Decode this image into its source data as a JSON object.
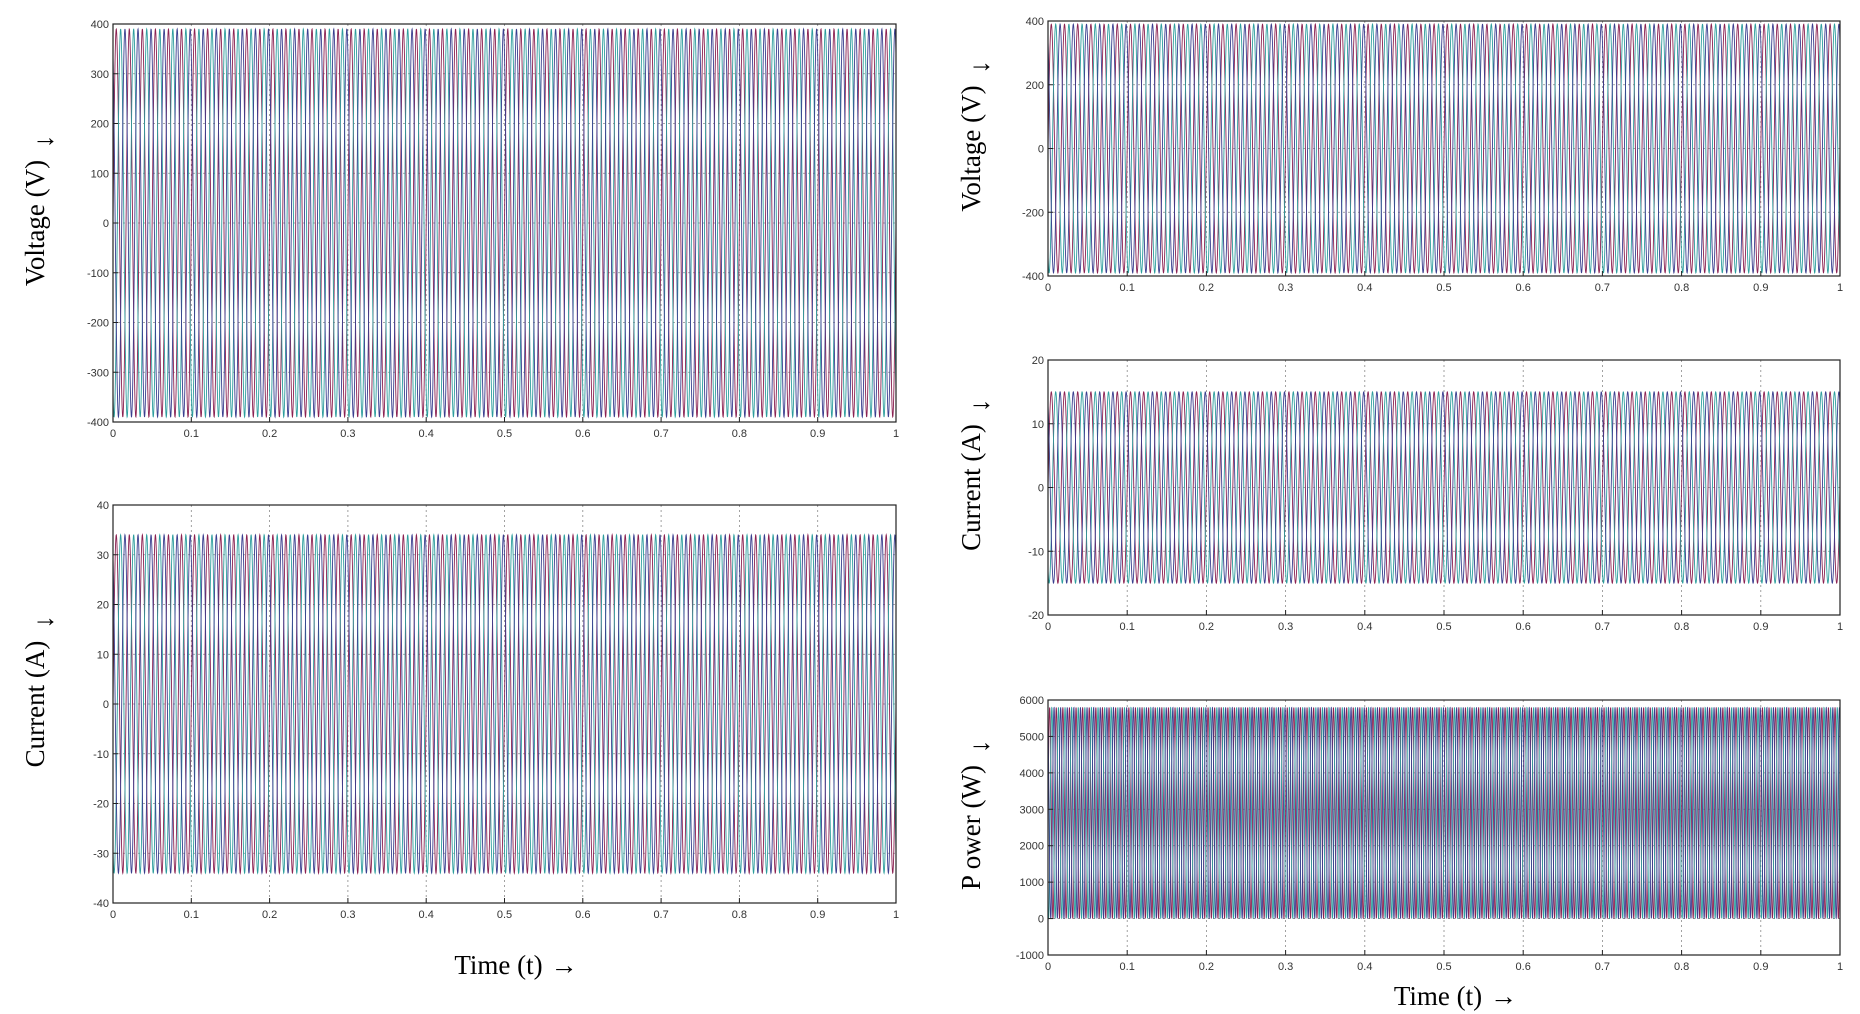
{
  "chart_data": [
    {
      "type": "line",
      "panel": "left-top",
      "ylabel": "Voltage (V)",
      "xlabel": "",
      "xlim": [
        0,
        1
      ],
      "ylim": [
        -400,
        400
      ],
      "xticks": [
        "0",
        "0.1",
        "0.2",
        "0.3",
        "0.4",
        "0.5",
        "0.6",
        "0.7",
        "0.8",
        "0.9",
        "1"
      ],
      "yticks": [
        "400",
        "300",
        "200",
        "100",
        "0",
        "-100",
        "-200",
        "-300",
        "-400"
      ],
      "grid": true,
      "series": [
        {
          "values": {
            "amplitude": 390,
            "frequency_hz": 60,
            "phase_deg": 0
          }
        },
        {
          "values": {
            "amplitude": 390,
            "frequency_hz": 60,
            "phase_deg": -120
          }
        },
        {
          "values": {
            "amplitude": 390,
            "frequency_hz": 60,
            "phase_deg": 120
          }
        }
      ]
    },
    {
      "type": "line",
      "panel": "left-bottom",
      "ylabel": "Current (A)",
      "xlabel": "Time (t)",
      "xlim": [
        0,
        1
      ],
      "ylim": [
        -40,
        40
      ],
      "xticks": [
        "0",
        "0.1",
        "0.2",
        "0.3",
        "0.4",
        "0.5",
        "0.6",
        "0.7",
        "0.8",
        "0.9",
        "1"
      ],
      "yticks": [
        "40",
        "30",
        "20",
        "10",
        "0",
        "-10",
        "-20",
        "-30",
        "-40"
      ],
      "grid": true,
      "series": [
        {
          "values": {
            "amplitude": 34,
            "frequency_hz": 60,
            "phase_deg": 0
          }
        },
        {
          "values": {
            "amplitude": 34,
            "frequency_hz": 60,
            "phase_deg": -120
          }
        },
        {
          "values": {
            "amplitude": 34,
            "frequency_hz": 60,
            "phase_deg": 120
          }
        }
      ]
    },
    {
      "type": "line",
      "panel": "right-top",
      "ylabel": "Voltage (V)",
      "xlabel": "",
      "xlim": [
        0,
        1
      ],
      "ylim": [
        -400,
        400
      ],
      "xticks": [
        "0",
        "0.1",
        "0.2",
        "0.3",
        "0.4",
        "0.5",
        "0.6",
        "0.7",
        "0.8",
        "0.9",
        "1"
      ],
      "yticks": [
        "400",
        "200",
        "0",
        "-200",
        "-400"
      ],
      "grid": true,
      "series": [
        {
          "values": {
            "amplitude": 390,
            "frequency_hz": 60,
            "phase_deg": 0
          }
        },
        {
          "values": {
            "amplitude": 390,
            "frequency_hz": 60,
            "phase_deg": -120
          }
        },
        {
          "values": {
            "amplitude": 390,
            "frequency_hz": 60,
            "phase_deg": 120
          }
        }
      ]
    },
    {
      "type": "line",
      "panel": "right-middle",
      "ylabel": "Current (A)",
      "xlabel": "",
      "xlim": [
        0,
        1
      ],
      "ylim": [
        -20,
        20
      ],
      "xticks": [
        "0",
        "0.1",
        "0.2",
        "0.3",
        "0.4",
        "0.5",
        "0.6",
        "0.7",
        "0.8",
        "0.9",
        "1"
      ],
      "yticks": [
        "20",
        "10",
        "0",
        "-10",
        "-20"
      ],
      "grid": true,
      "series": [
        {
          "values": {
            "amplitude": 15,
            "frequency_hz": 60,
            "phase_deg": 0
          }
        },
        {
          "values": {
            "amplitude": 15,
            "frequency_hz": 60,
            "phase_deg": -120
          }
        },
        {
          "values": {
            "amplitude": 15,
            "frequency_hz": 60,
            "phase_deg": 120
          }
        }
      ]
    },
    {
      "type": "line",
      "panel": "right-bottom",
      "ylabel": "P ower (W)",
      "xlabel": "Time (t)",
      "xlim": [
        0,
        1
      ],
      "ylim": [
        -1000,
        6000
      ],
      "xticks": [
        "0",
        "0.1",
        "0.2",
        "0.3",
        "0.4",
        "0.5",
        "0.6",
        "0.7",
        "0.8",
        "0.9",
        "1"
      ],
      "yticks": [
        "6000",
        "5000",
        "4000",
        "3000",
        "2000",
        "1000",
        "0",
        "-1000"
      ],
      "grid": true,
      "series": [
        {
          "values": {
            "offset": 2900,
            "amplitude": 2900,
            "frequency_hz": 120,
            "phase_deg": 0
          }
        },
        {
          "values": {
            "offset": 2900,
            "amplitude": 2900,
            "frequency_hz": 120,
            "phase_deg": -120
          }
        },
        {
          "values": {
            "offset": 2900,
            "amplitude": 2900,
            "frequency_hz": 120,
            "phase_deg": 120
          }
        }
      ]
    }
  ],
  "colors": {
    "series": [
      "#8b2252",
      "#2e9e9e",
      "#3a3f8f"
    ],
    "grid": "#8a8a8a",
    "plot_bg": "#ffffff",
    "axis": "#222222"
  },
  "arrow": "→"
}
